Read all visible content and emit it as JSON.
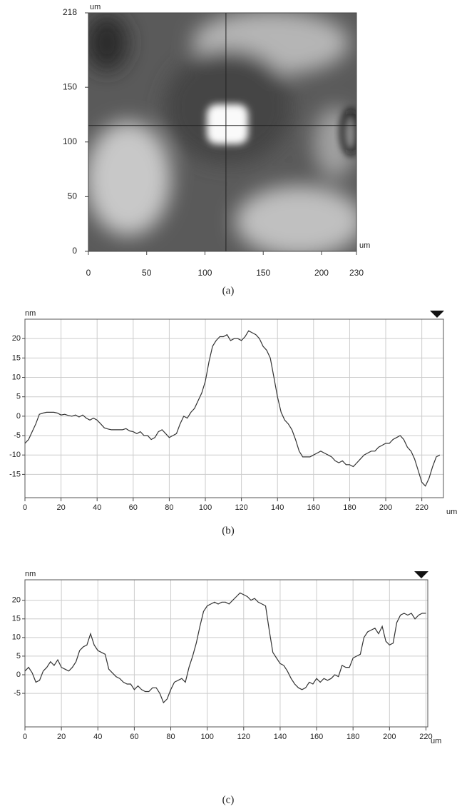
{
  "chart_data": [
    {
      "type": "image",
      "caption": "(a)",
      "x_label": "um",
      "y_label": "um",
      "xlim": [
        0,
        230
      ],
      "ylim": [
        0,
        218
      ],
      "xticks": [
        0,
        50,
        100,
        150,
        200,
        230
      ],
      "yticks": [
        0,
        50,
        100,
        150,
        218
      ],
      "crosshair_x": 118,
      "crosshair_y": 115
    },
    {
      "type": "line",
      "caption": "(b)",
      "x_label": "um",
      "y_label": "nm",
      "color": "#333333",
      "grid": true,
      "xlim": [
        0,
        232
      ],
      "ylim": [
        -21,
        25
      ],
      "xticks": [
        0,
        20,
        40,
        60,
        80,
        100,
        120,
        140,
        160,
        180,
        200,
        220
      ],
      "yticks": [
        -15,
        -10,
        -5,
        0,
        5,
        10,
        15,
        20
      ],
      "x": [
        0,
        2,
        4,
        6,
        8,
        10,
        12,
        14,
        16,
        18,
        20,
        22,
        24,
        26,
        28,
        30,
        32,
        34,
        36,
        38,
        40,
        42,
        44,
        46,
        48,
        50,
        52,
        54,
        56,
        58,
        60,
        62,
        64,
        66,
        68,
        70,
        72,
        74,
        76,
        78,
        80,
        82,
        84,
        86,
        88,
        90,
        92,
        94,
        96,
        98,
        100,
        102,
        104,
        106,
        108,
        110,
        112,
        114,
        116,
        118,
        120,
        122,
        124,
        126,
        128,
        130,
        132,
        134,
        136,
        138,
        140,
        142,
        144,
        146,
        148,
        150,
        152,
        154,
        156,
        158,
        160,
        162,
        164,
        166,
        168,
        170,
        172,
        174,
        176,
        178,
        180,
        182,
        184,
        186,
        188,
        190,
        192,
        194,
        196,
        198,
        200,
        202,
        204,
        206,
        208,
        210,
        212,
        214,
        216,
        218,
        220,
        222,
        224,
        226,
        228,
        230
      ],
      "values": [
        -7,
        -6,
        -4,
        -2,
        0.5,
        0.8,
        1,
        1,
        1,
        0.8,
        0.3,
        0.5,
        0.2,
        0,
        0.3,
        -0.2,
        0.3,
        -0.5,
        -1,
        -0.5,
        -1,
        -2,
        -3,
        -3.3,
        -3.5,
        -3.5,
        -3.5,
        -3.5,
        -3.2,
        -3.8,
        -4,
        -4.5,
        -4,
        -5,
        -5,
        -6,
        -5.5,
        -4,
        -3.5,
        -4.5,
        -5.5,
        -5,
        -4.5,
        -2,
        0,
        -0.5,
        1,
        2,
        4,
        6,
        9,
        14,
        18,
        19.5,
        20.5,
        20.5,
        21,
        19.5,
        20,
        20,
        19.5,
        20.5,
        22,
        21.5,
        21,
        20,
        18,
        17,
        15,
        10,
        5,
        1,
        -1,
        -2,
        -3.5,
        -6,
        -9,
        -10.5,
        -10.5,
        -10.5,
        -10,
        -9.5,
        -9,
        -9.5,
        -10,
        -10.5,
        -11.5,
        -12,
        -11.5,
        -12.5,
        -12.5,
        -13,
        -12,
        -11,
        -10,
        -9.5,
        -9,
        -9,
        -8,
        -7.5,
        -7,
        -7,
        -6,
        -5.5,
        -5,
        -6,
        -8,
        -9,
        -11,
        -14,
        -17,
        -18,
        -16,
        -13,
        -10.5,
        -10
      ]
    },
    {
      "type": "line",
      "caption": "(c)",
      "x_label": "um",
      "y_label": "nm",
      "color": "#333333",
      "grid": true,
      "xlim": [
        0,
        221
      ],
      "ylim": [
        -14,
        25.5
      ],
      "xticks": [
        0,
        20,
        40,
        60,
        80,
        100,
        120,
        140,
        160,
        180,
        200,
        220
      ],
      "yticks": [
        -5,
        0,
        5,
        10,
        15,
        20
      ],
      "x": [
        0,
        2,
        4,
        6,
        8,
        10,
        12,
        14,
        16,
        18,
        20,
        22,
        24,
        26,
        28,
        30,
        32,
        34,
        36,
        38,
        40,
        42,
        44,
        46,
        48,
        50,
        52,
        54,
        56,
        58,
        60,
        62,
        64,
        66,
        68,
        70,
        72,
        74,
        76,
        78,
        80,
        82,
        84,
        86,
        88,
        90,
        92,
        94,
        96,
        98,
        100,
        102,
        104,
        106,
        108,
        110,
        112,
        114,
        116,
        118,
        120,
        122,
        124,
        126,
        128,
        130,
        132,
        134,
        136,
        138,
        140,
        142,
        144,
        146,
        148,
        150,
        152,
        154,
        156,
        158,
        160,
        162,
        164,
        166,
        168,
        170,
        172,
        174,
        176,
        178,
        180,
        182,
        184,
        186,
        188,
        190,
        192,
        194,
        196,
        198,
        200,
        202,
        204,
        206,
        208,
        210,
        212,
        214,
        216,
        218,
        220
      ],
      "values": [
        1,
        2,
        0.5,
        -2,
        -1.5,
        1,
        2,
        3.5,
        2.5,
        4,
        2,
        1.5,
        1,
        2,
        3.5,
        6.5,
        7.5,
        8,
        11,
        8,
        6.5,
        6,
        5.5,
        1.5,
        0.5,
        -0.5,
        -1,
        -2,
        -2.5,
        -2.5,
        -4,
        -3,
        -4,
        -4.5,
        -4.5,
        -3.5,
        -3.5,
        -5,
        -7.5,
        -6.5,
        -4,
        -2,
        -1.5,
        -1,
        -2,
        2,
        5,
        8.5,
        13,
        17,
        18.5,
        19,
        19.5,
        19,
        19.5,
        19.5,
        19,
        20,
        21,
        22,
        21.5,
        21,
        20,
        20.5,
        19.5,
        19,
        18.5,
        12,
        6,
        4.5,
        3,
        2.5,
        1,
        -1,
        -2.5,
        -3.5,
        -4,
        -3.5,
        -2,
        -2.5,
        -1,
        -2,
        -1,
        -1.5,
        -1,
        0,
        -0.5,
        2.5,
        2,
        2,
        4.5,
        5,
        5.5,
        10,
        11.5,
        12,
        12.5,
        11,
        13,
        9,
        8,
        8.5,
        14,
        16,
        16.5,
        16,
        16.5,
        15,
        16,
        16.5,
        16.5
      ]
    }
  ]
}
